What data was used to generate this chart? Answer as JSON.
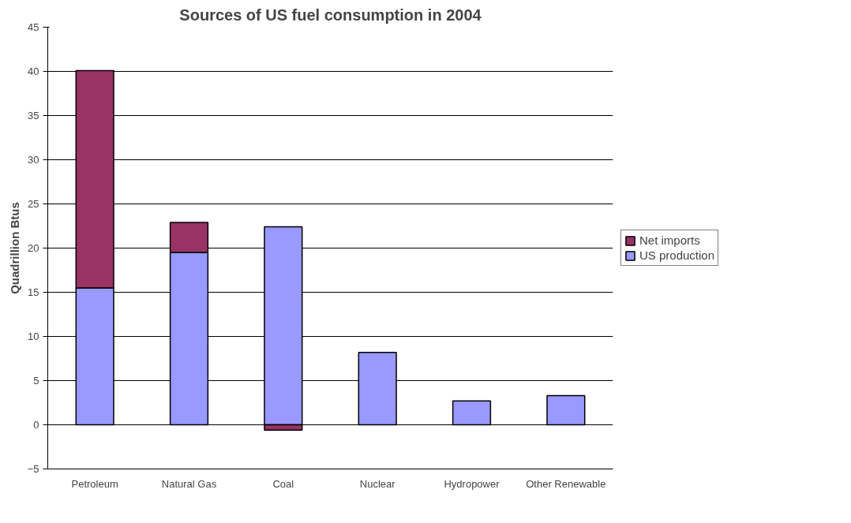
{
  "chart_data": {
    "type": "bar",
    "title": "Sources of US fuel consumption in 2004",
    "ylabel": "Quadrillion Btus",
    "categories": [
      "Petroleum",
      "Natural Gas",
      "Coal",
      "Nuclear",
      "Hydropower",
      "Other Renewable"
    ],
    "stacked": true,
    "series": [
      {
        "name": "US production",
        "color": "#9999ff",
        "values": [
          15.5,
          19.5,
          22.4,
          8.2,
          2.7,
          3.3
        ]
      },
      {
        "name": "Net imports",
        "color": "#993366",
        "values": [
          24.6,
          3.4,
          -0.6,
          null,
          null,
          null
        ]
      }
    ],
    "ylim": [
      -5,
      45
    ],
    "yticks": [
      -5,
      0,
      5,
      10,
      15,
      20,
      25,
      30,
      35,
      40,
      45
    ],
    "grid": "y",
    "legend": "right"
  }
}
